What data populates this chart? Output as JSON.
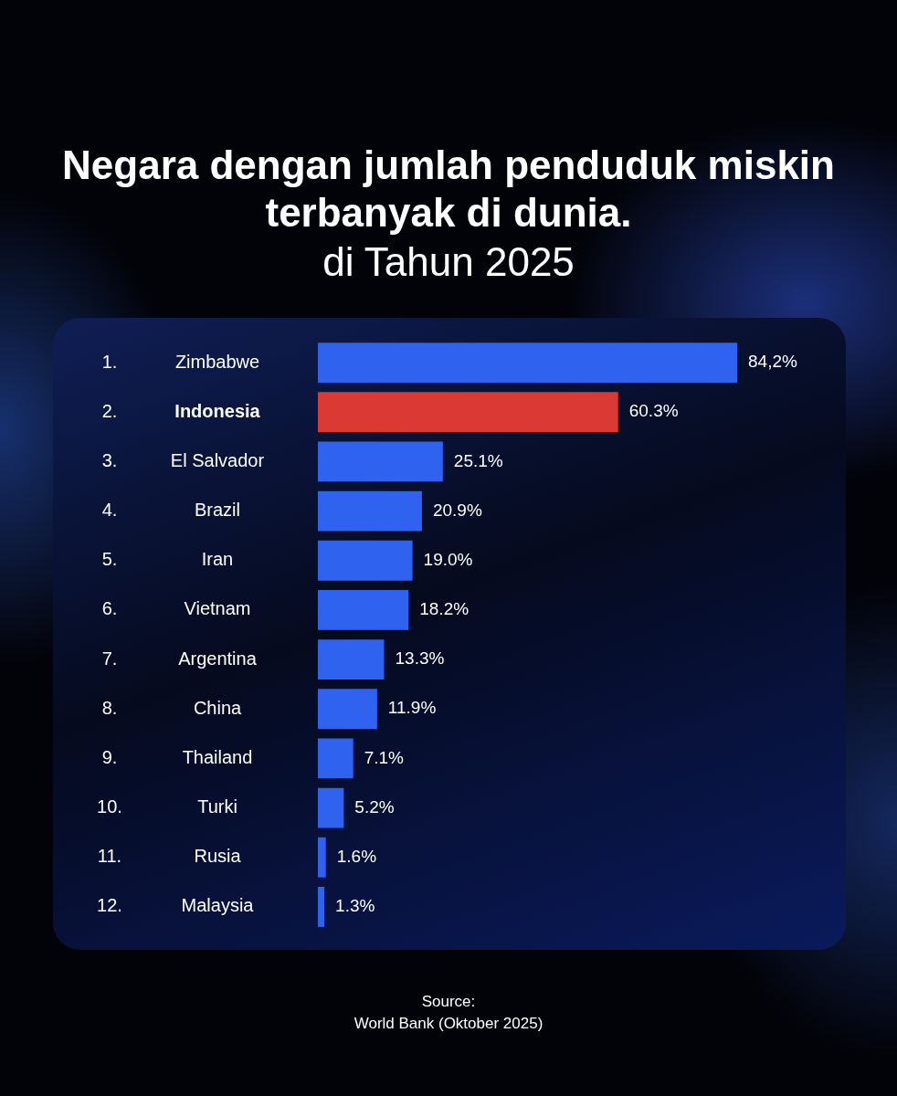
{
  "chart_data": {
    "type": "bar",
    "orientation": "horizontal",
    "title": "Negara dengan jumlah penduduk miskin terbanyak di dunia.",
    "subtitle": "di Tahun 2025",
    "categories": [
      "1. Zimbabwe",
      "2. Indonesia",
      "3. El Salvador",
      "4. Brazil",
      "5. Iran",
      "6. Vietnam",
      "7. Argentina",
      "8. China",
      "9. Thailand",
      "10. Turki",
      "11. Rusia",
      "12. Malaysia"
    ],
    "values": [
      84.2,
      60.3,
      25.1,
      20.9,
      19.0,
      18.2,
      13.3,
      11.9,
      7.1,
      5.2,
      1.6,
      1.3
    ],
    "colors": [
      "#2f62ee",
      "#db3a34",
      "#2f62ee",
      "#2f62ee",
      "#2f62ee",
      "#2f62ee",
      "#2f62ee",
      "#2f62ee",
      "#2f62ee",
      "#2f62ee",
      "#2f62ee",
      "#2f62ee"
    ],
    "value_labels": [
      "84,2%",
      "60.3%",
      "25.1%",
      "20.9%",
      "19.0%",
      "18.2%",
      "13.3%",
      "11.9%",
      "7.1%",
      "5.2%",
      "1.6%",
      "1.3%"
    ],
    "legend": false,
    "tick_labels": false,
    "annotations": [
      "Source:",
      "World Bank (Oktober 2025)"
    ]
  }
}
